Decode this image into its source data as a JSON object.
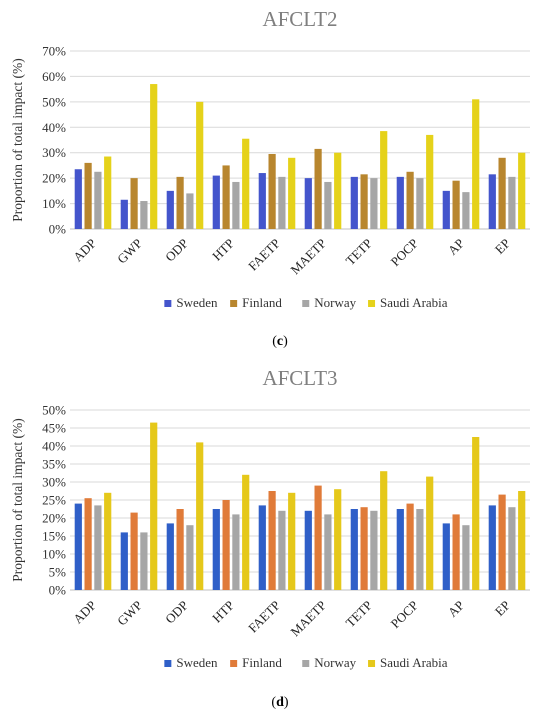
{
  "chart_data": [
    {
      "type": "bar",
      "panel": "(c)",
      "title": "AFCLT2",
      "ylabel": "Proportion of total impact (%)",
      "ylim": [
        0,
        70
      ],
      "yticks": [
        "0%",
        "10%",
        "20%",
        "30%",
        "40%",
        "50%",
        "60%",
        "70%"
      ],
      "categories": [
        "ADP",
        "GWP",
        "ODP",
        "HTP",
        "FAETP",
        "MAETP",
        "TETP",
        "POCP",
        "AP",
        "EP"
      ],
      "series": [
        {
          "name": "Sweden",
          "color": "#4455cc",
          "values": [
            23.5,
            11.5,
            15,
            21,
            22,
            20,
            20.5,
            20.5,
            15,
            21.5
          ]
        },
        {
          "name": "Finland",
          "color": "#b8862e",
          "values": [
            26,
            20,
            20.5,
            25,
            29.5,
            31.5,
            21.5,
            22.5,
            19,
            28
          ]
        },
        {
          "name": "Norway",
          "color": "#a6a6a6",
          "values": [
            22.5,
            11,
            14,
            18.5,
            20.5,
            18.5,
            20,
            20,
            14.5,
            20.5
          ]
        },
        {
          "name": "Saudi Arabia",
          "color": "#e5d21a",
          "values": [
            28.5,
            57,
            50,
            35.5,
            28,
            30,
            38.5,
            37,
            51,
            30
          ]
        }
      ],
      "legend": "bottom",
      "grid": true
    },
    {
      "type": "bar",
      "panel": "(d)",
      "title": "AFCLT3",
      "ylabel": "Proportion of total impact (%)",
      "ylim": [
        0,
        50
      ],
      "yticks": [
        "0%",
        "5%",
        "10%",
        "15%",
        "20%",
        "25%",
        "30%",
        "35%",
        "40%",
        "45%",
        "50%"
      ],
      "categories": [
        "ADP",
        "GWP",
        "ODP",
        "HTP",
        "FAETP",
        "MAETP",
        "TETP",
        "POCP",
        "AP",
        "EP"
      ],
      "series": [
        {
          "name": "Sweden",
          "color": "#2f5fc8",
          "values": [
            24,
            16,
            18.5,
            22.5,
            23.5,
            22,
            22.5,
            22.5,
            18.5,
            23.5
          ]
        },
        {
          "name": "Finland",
          "color": "#e07b39",
          "values": [
            25.5,
            21.5,
            22.5,
            25,
            27.5,
            29,
            23,
            24,
            21,
            26.5
          ]
        },
        {
          "name": "Norway",
          "color": "#a6a6a6",
          "values": [
            23.5,
            16,
            18,
            21,
            22,
            21,
            22,
            22.5,
            18,
            23
          ]
        },
        {
          "name": "Saudi Arabia",
          "color": "#e5c81a",
          "values": [
            27,
            46.5,
            41,
            32,
            27,
            28,
            33,
            31.5,
            42.5,
            27.5
          ]
        }
      ],
      "legend": "bottom",
      "grid": true
    }
  ]
}
